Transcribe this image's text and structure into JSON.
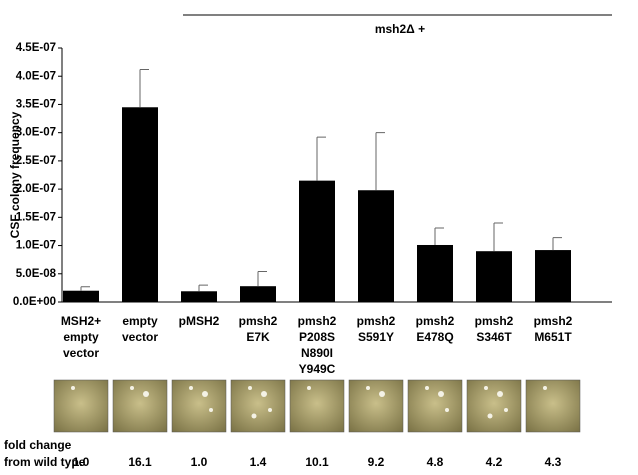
{
  "chart_data": {
    "type": "bar",
    "header": "msh2Δ +",
    "y_label": "CSF colony frequency",
    "categories": [
      [
        "MSH2+",
        "empty",
        "vector"
      ],
      [
        "empty",
        "vector"
      ],
      [
        "pMSH2"
      ],
      [
        "pmsh2",
        "E7K"
      ],
      [
        "pmsh2",
        "P208S",
        "N890I",
        "Y949C"
      ],
      [
        "pmsh2",
        "S591Y"
      ],
      [
        "pmsh2",
        "E478Q"
      ],
      [
        "pmsh2",
        "S346T"
      ],
      [
        "pmsh2",
        "M651T"
      ]
    ],
    "values": [
      2e-08,
      3.45e-07,
      1.9e-08,
      2.8e-08,
      2.15e-07,
      1.98e-07,
      1.01e-07,
      9e-08,
      9.2e-08
    ],
    "errors": [
      7e-09,
      6.7e-08,
      1.1e-08,
      2.6e-08,
      7.7e-08,
      1.02e-07,
      3e-08,
      5e-08,
      2.2e-08
    ],
    "color": "#000000",
    "ylim": [
      0,
      4.5e-07
    ],
    "yticks": [
      {
        "value": 0,
        "label": "0.0E+00"
      },
      {
        "value": 5e-08,
        "label": "5.0E-08"
      },
      {
        "value": 1e-07,
        "label": "1.0E-07"
      },
      {
        "value": 1.5e-07,
        "label": "1.5E-07"
      },
      {
        "value": 2e-07,
        "label": "2.0E-07"
      },
      {
        "value": 2.5e-07,
        "label": "2.5E-07"
      },
      {
        "value": 3e-07,
        "label": "3.0E-07"
      },
      {
        "value": 3.5e-07,
        "label": "3.5E-07"
      },
      {
        "value": 4e-07,
        "label": "4.0E-07"
      },
      {
        "value": 4.5e-07,
        "label": "4.5E-07"
      }
    ],
    "fold_change": {
      "label": [
        "fold change",
        "from wild type"
      ],
      "values": [
        "1.0",
        "16.1",
        "1.0",
        "1.4",
        "10.1",
        "9.2",
        "4.8",
        "4.2",
        "4.3"
      ]
    }
  }
}
